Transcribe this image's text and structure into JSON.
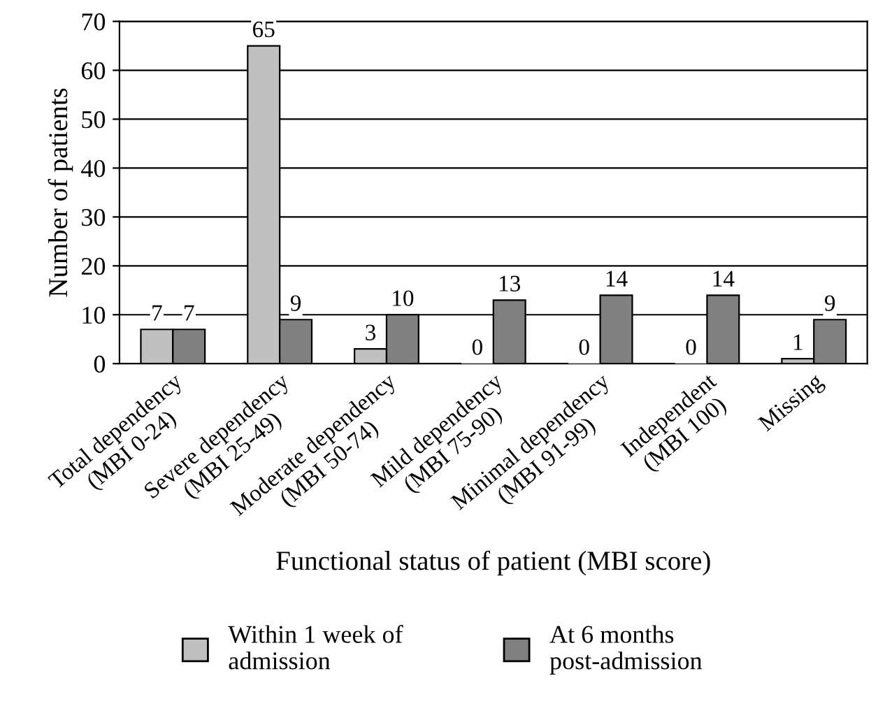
{
  "chart_data": {
    "type": "bar",
    "xlabel": "Functional status of patient (MBI score)",
    "ylabel": "Number of patients",
    "categories": [
      "Total dependency\n(MBI 0-24)",
      "Severe dependency\n(MBI 25-49)",
      "Moderate dependency\n(MBI 50-74)",
      "Mild dependency\n(MBI 75-90)",
      "Minimal dependency\n(MBI 91-99)",
      "Independent\n(MBI 100)",
      "Missing"
    ],
    "series": [
      {
        "name": "Within 1 week of\nadmission",
        "color": "#c0c0c0",
        "values": [
          7,
          65,
          3,
          0,
          0,
          0,
          1
        ]
      },
      {
        "name": "At 6 months\npost-admission",
        "color": "#808080",
        "values": [
          7,
          9,
          10,
          13,
          14,
          14,
          9
        ]
      }
    ],
    "ylim": [
      0,
      70
    ],
    "yticks": [
      0,
      10,
      20,
      30,
      40,
      50,
      60,
      70
    ],
    "grid": "y",
    "legend": "bottom",
    "data_labels": true
  }
}
